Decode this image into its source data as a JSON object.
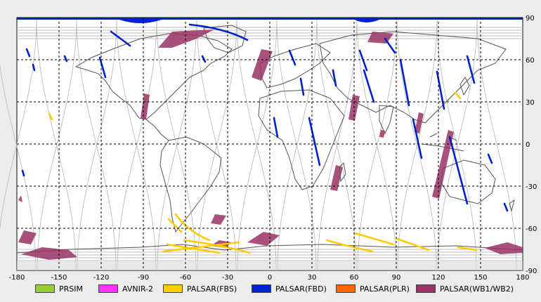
{
  "map": {
    "x_ticks": [
      "-180",
      "-150",
      "-120",
      "-90",
      "-60",
      "-30",
      "0",
      "30",
      "60",
      "90",
      "120",
      "150",
      "180"
    ],
    "y_ticks": [
      "90",
      "60",
      "30",
      "0",
      "-30",
      "-60",
      "-90"
    ],
    "grid": true,
    "colors": {
      "background": "#ffffff",
      "coastline": "#555555",
      "orbit_track": "#bdbdbd",
      "grid": "#000000"
    }
  },
  "legend": [
    {
      "label": "PRSIM",
      "color": "#99cc33"
    },
    {
      "label": "AVNIR-2",
      "color": "#ff33ff"
    },
    {
      "label": "PALSAR(FBS)",
      "color": "#ffcc00"
    },
    {
      "label": "PALSAR(FBD)",
      "color": "#0022cc"
    },
    {
      "label": "PALSAR(PLR)",
      "color": "#ff6600"
    },
    {
      "label": "PALSAR(WB1/WB2)",
      "color": "#993366"
    }
  ]
}
